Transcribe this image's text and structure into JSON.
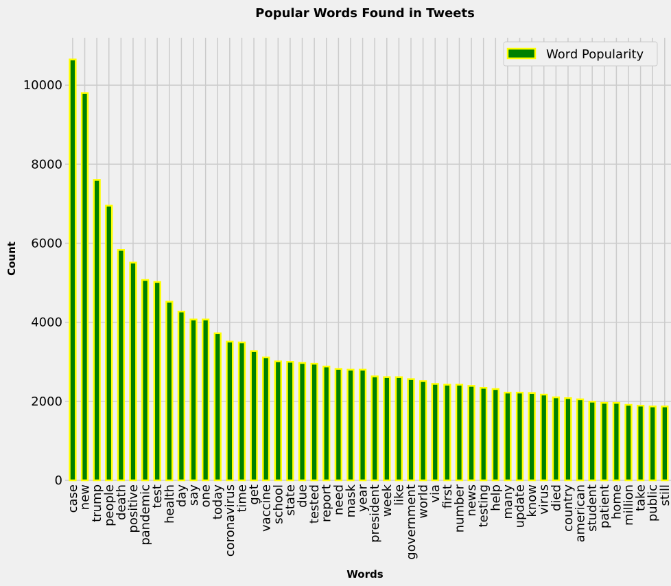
{
  "chart_data": {
    "type": "bar",
    "title": "Popular Words Found in Tweets",
    "xlabel": "Words",
    "ylabel": "Count",
    "ylim": [
      0,
      11200
    ],
    "yticks": [
      0,
      2000,
      4000,
      6000,
      8000,
      10000
    ],
    "grid": true,
    "legend_position": "top-right",
    "colors": {
      "bar_fill": "#008000",
      "bar_edge": "#ffff00",
      "background": "#f0f0f0",
      "grid": "#cbcbcb"
    },
    "categories": [
      "case",
      "new",
      "trump",
      "people",
      "death",
      "positive",
      "pandemic",
      "test",
      "health",
      "day",
      "say",
      "one",
      "today",
      "coronavirus",
      "time",
      "get",
      "vaccine",
      "school",
      "state",
      "due",
      "tested",
      "report",
      "need",
      "mask",
      "year",
      "president",
      "week",
      "like",
      "government",
      "world",
      "via",
      "first",
      "number",
      "news",
      "testing",
      "help",
      "many",
      "update",
      "know",
      "virus",
      "died",
      "country",
      "american",
      "student",
      "patient",
      "home",
      "million",
      "take",
      "public",
      "still"
    ],
    "series": [
      {
        "name": "Word Popularity",
        "values": [
          10650,
          9800,
          7600,
          6950,
          5830,
          5510,
          5070,
          5020,
          4520,
          4270,
          4070,
          4070,
          3720,
          3510,
          3490,
          3270,
          3110,
          3010,
          3000,
          2970,
          2950,
          2880,
          2820,
          2800,
          2800,
          2630,
          2610,
          2610,
          2560,
          2510,
          2440,
          2420,
          2420,
          2390,
          2340,
          2310,
          2220,
          2220,
          2210,
          2170,
          2100,
          2080,
          2050,
          1990,
          1960,
          1960,
          1910,
          1890,
          1870,
          1870
        ]
      }
    ]
  }
}
